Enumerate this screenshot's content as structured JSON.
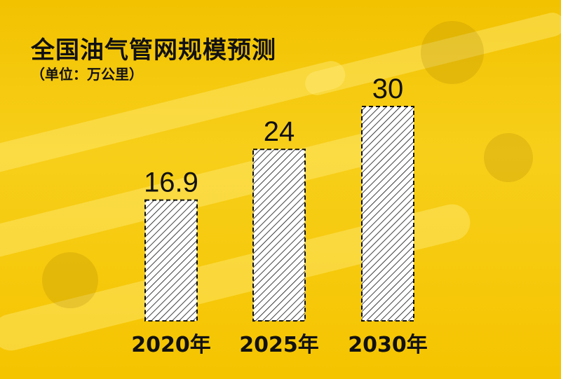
{
  "title": "全国油气管网规模预测",
  "subtitle": "（单位：万公里）",
  "colors": {
    "background": "#f5c400",
    "bar_fill": "#ffffff",
    "bar_hatch": "#111111",
    "text": "#111111"
  },
  "chart_data": {
    "type": "bar",
    "title": "全国油气管网规模预测",
    "ylabel": "万公里",
    "categories": [
      "2020年",
      "2025年",
      "2030年"
    ],
    "values": [
      16.9,
      24,
      30
    ],
    "value_labels": [
      "16.9",
      "24",
      "30"
    ],
    "ylim": [
      0,
      30
    ],
    "grid": false,
    "legend": "none"
  }
}
